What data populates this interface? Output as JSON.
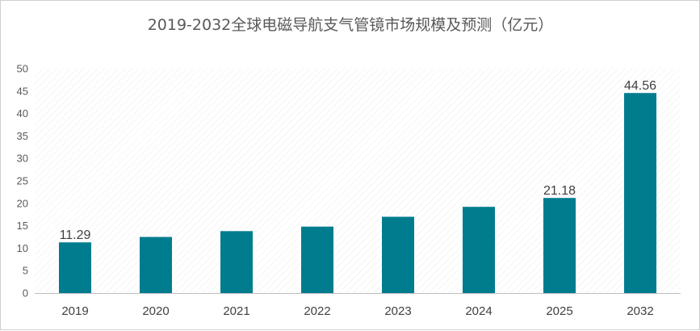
{
  "chart_data": {
    "type": "bar",
    "title": "2019-2032全球电磁导航支气管镜市场规模及预测（亿元）",
    "xlabel": "",
    "ylabel": "",
    "categories": [
      "2019",
      "2020",
      "2021",
      "2022",
      "2023",
      "2024",
      "2025",
      "2032"
    ],
    "values": [
      11.29,
      12.5,
      13.8,
      14.8,
      17.0,
      19.2,
      21.18,
      44.56
    ],
    "data_labels": [
      "11.29",
      "",
      "",
      "",
      "",
      "",
      "21.18",
      "44.56"
    ],
    "ylim": [
      0,
      50
    ],
    "yticks": [
      0,
      5,
      10,
      15,
      20,
      25,
      30,
      35,
      40,
      45,
      50
    ],
    "grid": false,
    "plot_background": "diagonal-hatch",
    "legend": "none"
  },
  "colors": {
    "bar": "#007C8F",
    "axis": "#bfbfbf",
    "hatch": "#ececec"
  }
}
